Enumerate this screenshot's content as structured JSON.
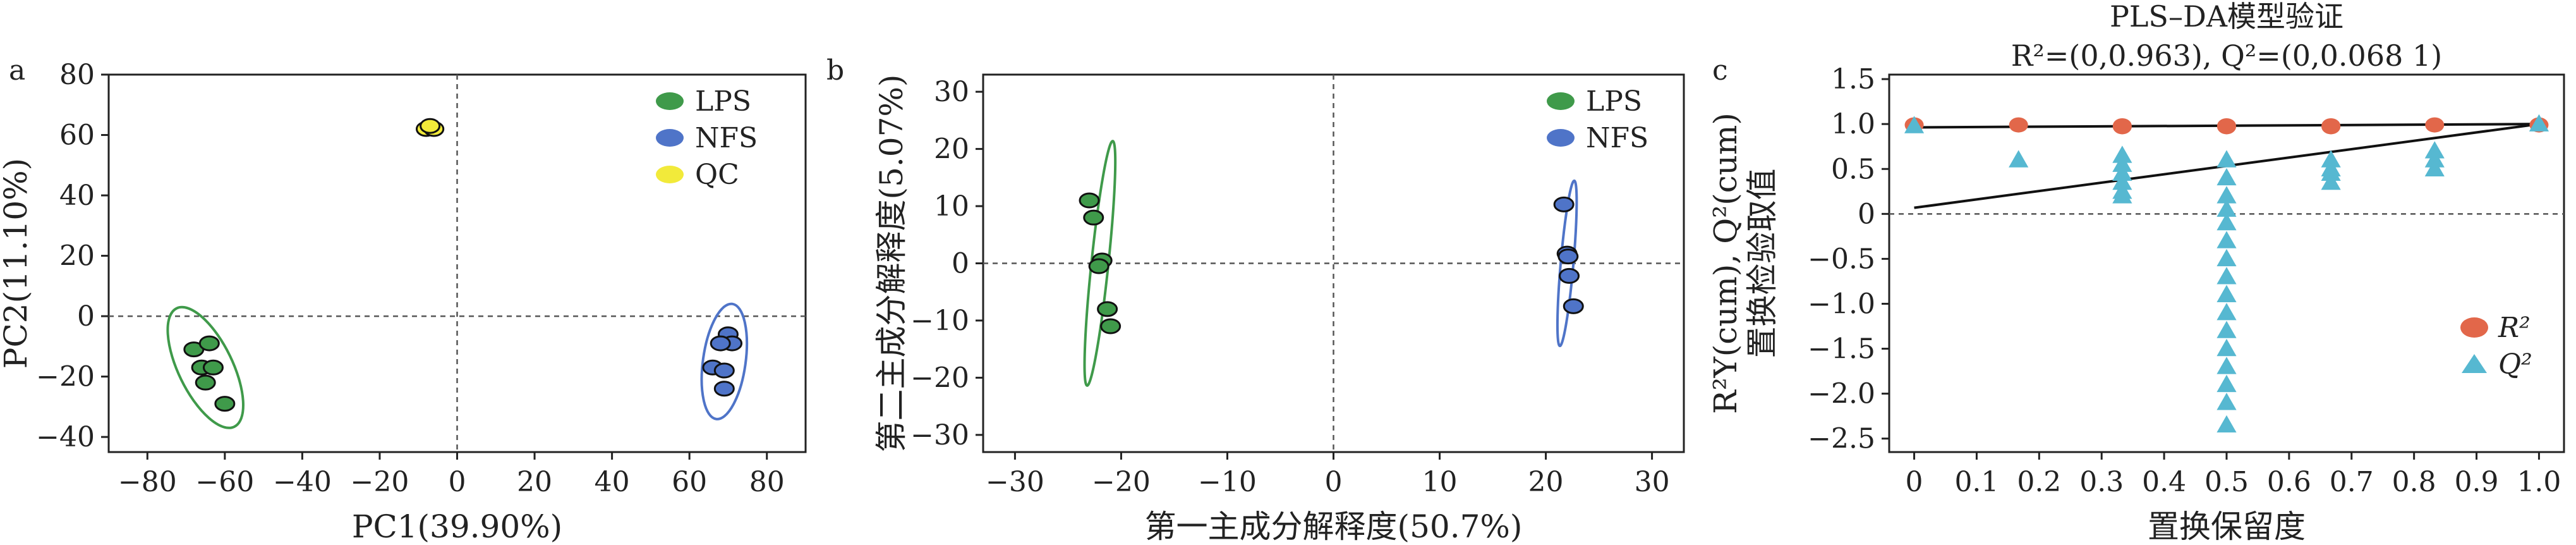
{
  "chart_data": [
    {
      "type": "scatter",
      "panel": "a",
      "xlabel": "PC1(39.90%)",
      "ylabel": "PC2(11.10%)",
      "xlim": [
        -90,
        90
      ],
      "ylim": [
        -45,
        80
      ],
      "xticks": [
        -80,
        -60,
        -40,
        -20,
        0,
        20,
        40,
        60,
        80
      ],
      "yticks": [
        -40,
        -20,
        0,
        20,
        40,
        60,
        80
      ],
      "tick_labels_x": [
        "−80",
        "−60",
        "−40",
        "−20",
        "0",
        "20",
        "40",
        "60",
        "80"
      ],
      "tick_labels_y": [
        "−40",
        "−20",
        "0",
        "20",
        "40",
        "60",
        "80"
      ],
      "legend_position": "top-right",
      "series": [
        {
          "name": "LPS",
          "color": "#3f9a4a",
          "points": [
            [
              -68,
              -11
            ],
            [
              -64,
              -9
            ],
            [
              -66,
              -17
            ],
            [
              -63,
              -17
            ],
            [
              -65,
              -22
            ],
            [
              -60,
              -29
            ]
          ],
          "ellipse": {
            "cx": -65,
            "cy": -17,
            "rx": 17,
            "ry": 7,
            "angle_deg": 64
          }
        },
        {
          "name": "NFS",
          "color": "#4f74c8",
          "points": [
            [
              70,
              -6
            ],
            [
              71,
              -9
            ],
            [
              68,
              -9
            ],
            [
              66,
              -17
            ],
            [
              69,
              -18
            ],
            [
              69,
              -24
            ]
          ],
          "ellipse": {
            "cx": 69,
            "cy": -15,
            "rx": 15,
            "ry": 5.5,
            "angle_deg": -82
          }
        },
        {
          "name": "QC",
          "color": "#f2ea3a",
          "points": [
            [
              -8,
              62
            ],
            [
              -6,
              62
            ],
            [
              -7,
              63
            ]
          ]
        }
      ]
    },
    {
      "type": "scatter",
      "panel": "b",
      "xlabel": "第一主成分解释度(50.7%)",
      "ylabel": "第二主成分解释度(5.07%)",
      "xlim": [
        -33,
        33
      ],
      "ylim": [
        -33,
        33
      ],
      "xticks": [
        -30,
        -20,
        -10,
        0,
        10,
        20,
        30
      ],
      "yticks": [
        -30,
        -20,
        -10,
        0,
        10,
        20,
        30
      ],
      "tick_labels_x": [
        "−30",
        "−20",
        "−10",
        "0",
        "10",
        "20",
        "30"
      ],
      "tick_labels_y": [
        "−30",
        "−20",
        "−10",
        "0",
        "10",
        "20",
        "30"
      ],
      "legend_position": "top-right",
      "series": [
        {
          "name": "LPS",
          "color": "#3f9a4a",
          "points": [
            [
              -23,
              11
            ],
            [
              -22.6,
              8
            ],
            [
              -21.8,
              0.5
            ],
            [
              -22.1,
              -0.5
            ],
            [
              -21.3,
              -8
            ],
            [
              -21,
              -11
            ]
          ],
          "ellipse": {
            "cx": -22,
            "cy": 0,
            "rx": 21.5,
            "ry": 0.8,
            "angle_deg": 96
          }
        },
        {
          "name": "NFS",
          "color": "#4f74c8",
          "points": [
            [
              21.7,
              10.3
            ],
            [
              22,
              1.7
            ],
            [
              22.1,
              1.2
            ],
            [
              22.2,
              -2.2
            ],
            [
              22.6,
              -7.5
            ]
          ],
          "ellipse": {
            "cx": 22,
            "cy": 0,
            "rx": 14.5,
            "ry": 0.6,
            "angle_deg": 95
          }
        }
      ]
    },
    {
      "type": "scatter",
      "panel": "c",
      "title": "PLS–DA模型验证",
      "subtitle": "R²=(0,0.963), Q²=(0,0.068 1)",
      "xlabel": "置换保留度",
      "ylabel_line1": "R²Y(cum), Q²(cum)",
      "ylabel_line2": "置换检验取值",
      "xlim": [
        -0.04,
        1.04
      ],
      "ylim": [
        -2.65,
        1.55
      ],
      "xticks": [
        0,
        0.1,
        0.2,
        0.3,
        0.4,
        0.5,
        0.6,
        0.7,
        0.8,
        0.9,
        1.0
      ],
      "yticks": [
        -2.5,
        -2.0,
        -1.5,
        -1.0,
        -0.5,
        0,
        0.5,
        1.0,
        1.5
      ],
      "tick_labels_x": [
        "0",
        "0.1",
        "0.2",
        "0.3",
        "0.4",
        "0.5",
        "0.6",
        "0.7",
        "0.8",
        "0.9",
        "1.0"
      ],
      "tick_labels_y": [
        "−2.5",
        "−2.0",
        "−1.5",
        "−1.0",
        "−0.5",
        "0",
        "0.5",
        "1.0",
        "1.5"
      ],
      "legend_position": "right",
      "series": [
        {
          "name": "R²",
          "color": "#e2674a",
          "marker": "circle",
          "points": [
            [
              0,
              0.99
            ],
            [
              0.167,
              0.99
            ],
            [
              0.333,
              0.98
            ],
            [
              0.333,
              0.97
            ],
            [
              0.5,
              0.98
            ],
            [
              0.5,
              0.97
            ],
            [
              0.667,
              0.98
            ],
            [
              0.667,
              0.97
            ],
            [
              0.833,
              0.99
            ],
            [
              1.0,
              0.99
            ]
          ]
        },
        {
          "name": "Q²",
          "color": "#56b8d1",
          "marker": "triangle",
          "points": [
            [
              0,
              0.98
            ],
            [
              0.167,
              0.6
            ],
            [
              0.333,
              0.55
            ],
            [
              0.333,
              0.45
            ],
            [
              0.333,
              0.35
            ],
            [
              0.333,
              0.25
            ],
            [
              0.333,
              0.2
            ],
            [
              0.333,
              0.65
            ],
            [
              0.5,
              0.6
            ],
            [
              0.5,
              0.4
            ],
            [
              0.5,
              0.2
            ],
            [
              0.5,
              0.05
            ],
            [
              0.5,
              -0.1
            ],
            [
              0.5,
              -0.3
            ],
            [
              0.5,
              -0.5
            ],
            [
              0.5,
              -0.7
            ],
            [
              0.5,
              -0.9
            ],
            [
              0.5,
              -1.1
            ],
            [
              0.5,
              -1.3
            ],
            [
              0.5,
              -1.5
            ],
            [
              0.5,
              -1.7
            ],
            [
              0.5,
              -1.9
            ],
            [
              0.5,
              -2.1
            ],
            [
              0.5,
              -2.35
            ],
            [
              0.667,
              0.6
            ],
            [
              0.667,
              0.5
            ],
            [
              0.667,
              0.45
            ],
            [
              0.667,
              0.35
            ],
            [
              0.833,
              0.7
            ],
            [
              0.833,
              0.6
            ],
            [
              0.833,
              0.5
            ],
            [
              1.0,
              1.0
            ]
          ]
        }
      ],
      "regression_lines": [
        {
          "name": "R²",
          "x": [
            0,
            1.0
          ],
          "y": [
            0.963,
            1.0
          ]
        },
        {
          "name": "Q²",
          "x": [
            0,
            1.0
          ],
          "y": [
            0.0681,
            1.0
          ]
        }
      ]
    }
  ]
}
